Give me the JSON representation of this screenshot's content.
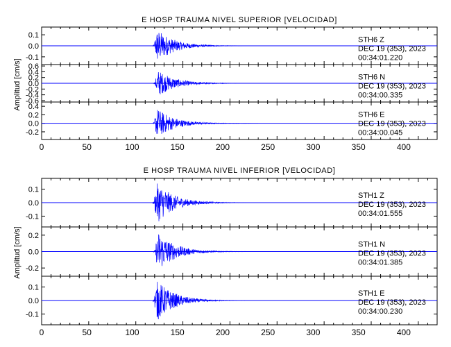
{
  "colors": {
    "trace": "#0000ff",
    "axes": "#000000",
    "background": "#ffffff"
  },
  "chart_data": [
    {
      "type": "line",
      "title": "E HOSP TRAUMA NIVEL SUPERIOR [VELOCIDAD]",
      "ylabel": "Amplitud [cm/s]",
      "xlim": [
        0,
        420
      ],
      "xticks": [
        0,
        50,
        100,
        150,
        200,
        250,
        300,
        350,
        400
      ],
      "series": [
        {
          "station": "STH6",
          "component": "Z",
          "date": "DEC 19 (353), 2023",
          "time": "00:34:01.220",
          "ylim": [
            -0.17,
            0.17
          ],
          "yticks": [
            "0.1",
            "0.0",
            "-0.1"
          ],
          "ytick_values": [
            0.1,
            0,
            -0.1
          ],
          "event_onset_s": 120,
          "peak_amplitude": 0.15
        },
        {
          "station": "STH6",
          "component": "N",
          "date": "DEC 19 (353), 2023",
          "time": "00:34:00.335",
          "ylim": [
            -0.65,
            0.65
          ],
          "yticks": [
            "0.6",
            "0.4",
            "0.2",
            "0.0",
            "-0.2",
            "-0.4",
            "-0.6"
          ],
          "ytick_values": [
            0.6,
            0.4,
            0.2,
            0,
            -0.2,
            -0.4,
            -0.6
          ],
          "event_onset_s": 121,
          "peak_amplitude": 0.45
        },
        {
          "station": "STH6",
          "component": "E",
          "date": "DEC 19 (353), 2023",
          "time": "00:34:00.045",
          "ylim": [
            -0.38,
            0.5
          ],
          "yticks": [
            "0.4",
            "0.2",
            "0.0",
            "-0.2"
          ],
          "ytick_values": [
            0.4,
            0.2,
            0,
            -0.2
          ],
          "event_onset_s": 120,
          "peak_amplitude": 0.35
        }
      ]
    },
    {
      "type": "line",
      "title": "E HOSP TRAUMA NIVEL INFERIOR [VELOCIDAD]",
      "ylabel": "Amplitud [cm/s]",
      "xlim": [
        0,
        420
      ],
      "xticks": [
        0,
        50,
        100,
        150,
        200,
        250,
        300,
        350,
        400
      ],
      "series": [
        {
          "station": "STH1",
          "component": "Z",
          "date": "DEC 19 (353), 2023",
          "time": "00:34:01.555",
          "ylim": [
            -0.18,
            0.18
          ],
          "yticks": [
            "0.1",
            "0.0",
            "-0.1"
          ],
          "ytick_values": [
            0.1,
            0,
            -0.1
          ],
          "event_onset_s": 120,
          "peak_amplitude": 0.15
        },
        {
          "station": "STH1",
          "component": "N",
          "date": "DEC 19 (353), 2023",
          "time": "00:34:01.385",
          "ylim": [
            -0.3,
            0.3
          ],
          "yticks": [
            "0.2",
            "0.0",
            "-0.2"
          ],
          "ytick_values": [
            0.2,
            0,
            -0.2
          ],
          "event_onset_s": 121,
          "peak_amplitude": 0.24
        },
        {
          "station": "STH1",
          "component": "E",
          "date": "DEC 19 (353), 2023",
          "time": "00:34:00.230",
          "ylim": [
            -0.18,
            0.18
          ],
          "yticks": [
            "0.1",
            "0.0",
            "-0.1"
          ],
          "ytick_values": [
            0.1,
            0,
            -0.1
          ],
          "event_onset_s": 120,
          "peak_amplitude": 0.15
        }
      ]
    }
  ]
}
